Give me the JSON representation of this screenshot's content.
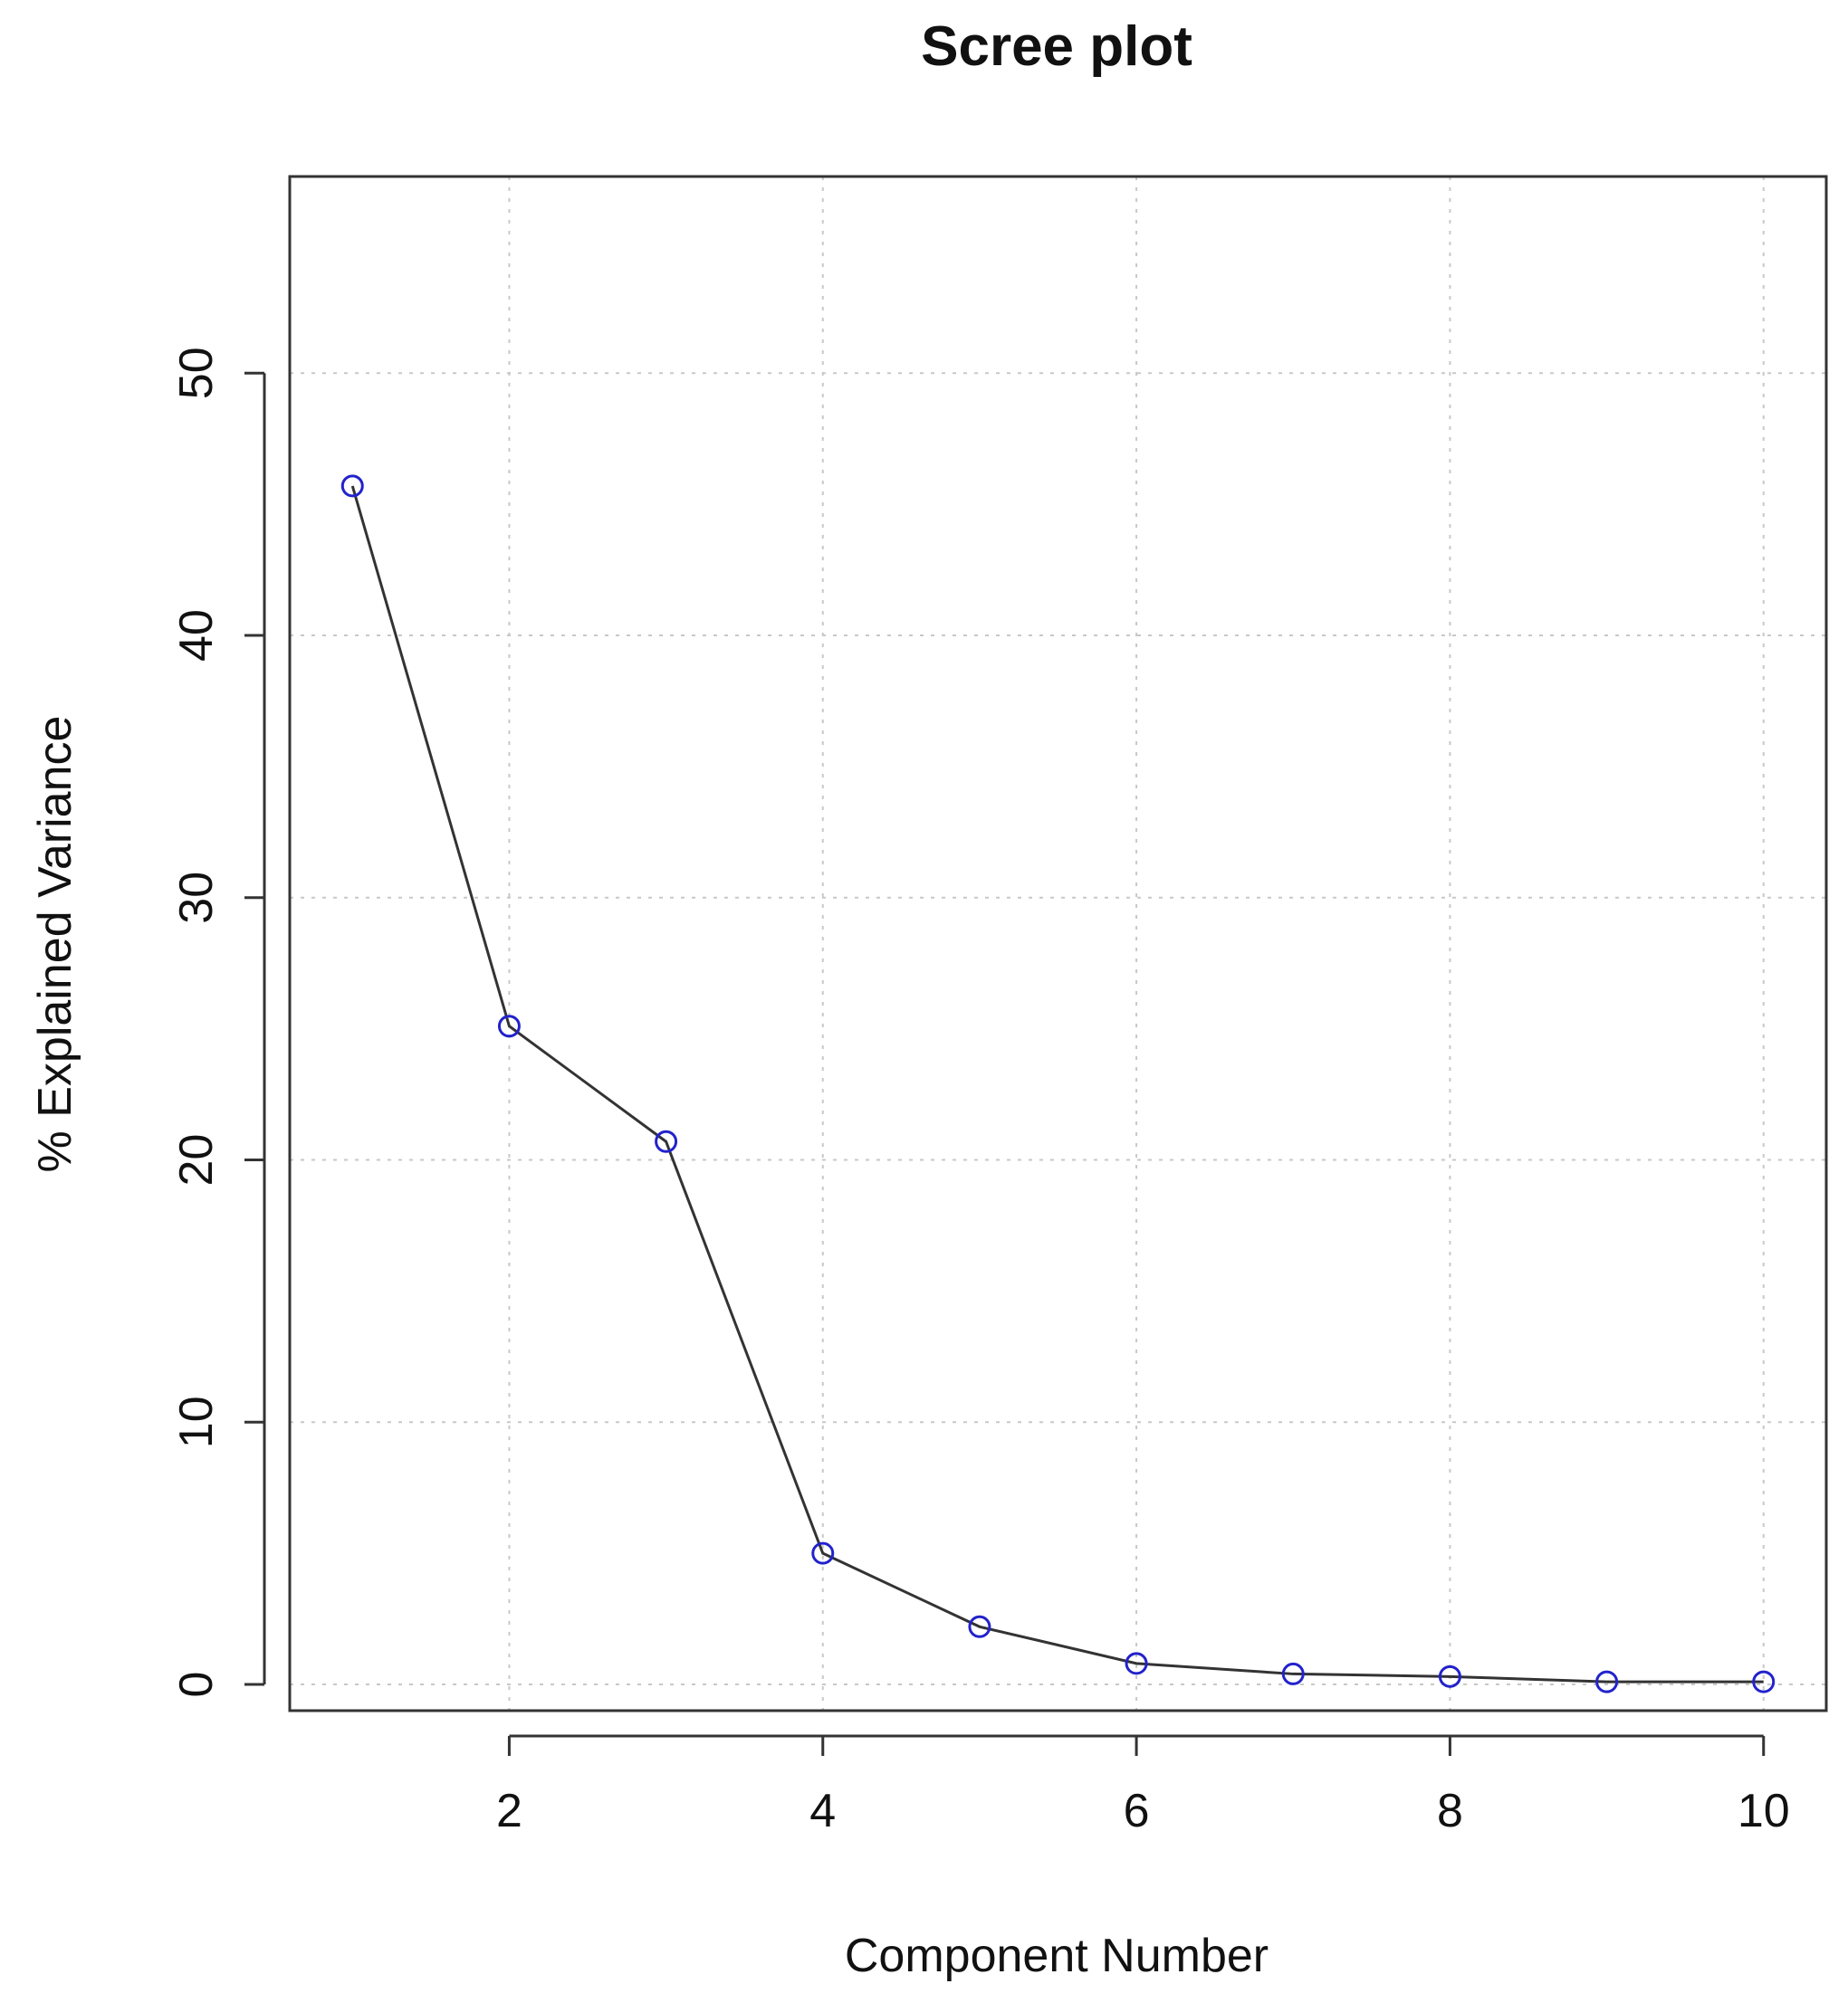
{
  "chart_data": {
    "type": "line",
    "title": "Scree plot",
    "xlabel": "Component Number",
    "ylabel": "% Explained Variance",
    "x": [
      1,
      2,
      3,
      4,
      5,
      6,
      7,
      8,
      9,
      10
    ],
    "series": [
      {
        "values": [
          45.7,
          25.1,
          20.7,
          5.0,
          2.2,
          0.8,
          0.4,
          0.3,
          0.1,
          0.1
        ],
        "line_color": "#333333",
        "marker_color": "#2222cc",
        "marker": "open-circle"
      }
    ],
    "xlim": [
      0.6,
      10.4
    ],
    "ylim": [
      -1.0,
      57.5
    ],
    "xticks": [
      2,
      4,
      6,
      8,
      10
    ],
    "yticks": [
      0,
      10,
      20,
      30,
      40,
      50
    ],
    "grid": true,
    "grid_style": "dotted",
    "legend": "none"
  }
}
